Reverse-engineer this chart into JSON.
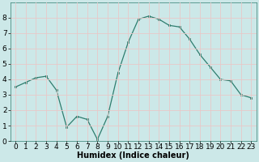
{
  "x": [
    0,
    1,
    2,
    3,
    4,
    5,
    6,
    7,
    8,
    9,
    10,
    11,
    12,
    13,
    14,
    15,
    16,
    17,
    18,
    19,
    20,
    21,
    22,
    23
  ],
  "y": [
    3.5,
    3.8,
    4.1,
    4.2,
    3.3,
    0.9,
    1.6,
    1.4,
    0.1,
    1.6,
    4.4,
    6.4,
    7.9,
    8.1,
    7.9,
    7.5,
    7.4,
    6.6,
    5.6,
    4.8,
    4.0,
    3.9,
    3.0,
    2.8
  ],
  "xlabel": "Humidex (Indice chaleur)",
  "ylim": [
    0,
    9
  ],
  "xlim": [
    -0.5,
    23.5
  ],
  "yticks": [
    0,
    1,
    2,
    3,
    4,
    5,
    6,
    7,
    8
  ],
  "xticks": [
    0,
    1,
    2,
    3,
    4,
    5,
    6,
    7,
    8,
    9,
    10,
    11,
    12,
    13,
    14,
    15,
    16,
    17,
    18,
    19,
    20,
    21,
    22,
    23
  ],
  "line_color": "#2e7d6e",
  "marker_color": "#2e7d6e",
  "bg_color": "#cce8e8",
  "grid_color": "#e8c8c8",
  "xlabel_fontsize": 7,
  "tick_fontsize": 6.5
}
